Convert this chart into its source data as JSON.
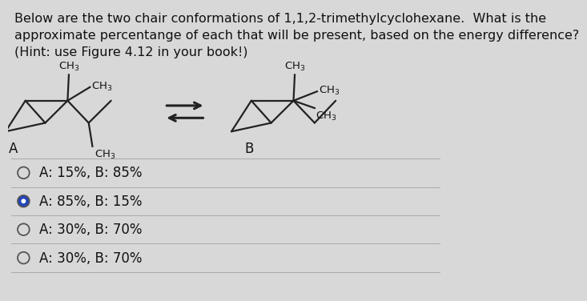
{
  "background_color": "#d8d8d8",
  "title_lines": [
    "Below are the two chair conformations of 1,1,2-trimethylcyclohexane.  What is the",
    "approximate percentange of each that will be present, based on the energy difference?",
    "(Hint: use Figure 4.12 in your book!)"
  ],
  "title_fontsize": 11.5,
  "label_A": "A",
  "label_B": "B",
  "choices": [
    "A: 15%, B: 85%",
    "A: 85%, B: 15%",
    "A: 30%, B: 70%",
    "A: 30%, B: 70%"
  ],
  "selected_choice": 1,
  "choice_fontsize": 12,
  "line_color": "#222222",
  "text_color": "#111111",
  "radio_selected_color": "#2244bb",
  "radio_border_color": "#555555",
  "sep_line_color": "#aaaaaa"
}
